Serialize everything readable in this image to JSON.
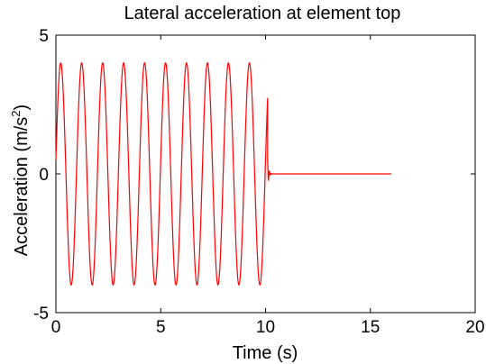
{
  "chart_data": {
    "type": "line",
    "title": "Lateral acceleration at element top",
    "xlabel": "Time (s)",
    "ylabel_main": "Acceleration (m/s",
    "ylabel_sup": "2",
    "ylabel_close": ")",
    "xlim": [
      0,
      20
    ],
    "ylim": [
      -5,
      5
    ],
    "x_ticks": [
      0,
      5,
      10,
      15,
      20
    ],
    "y_ticks": [
      -5,
      0,
      5
    ],
    "grid": false,
    "legend": "none",
    "series": [
      {
        "color": "#ff0000",
        "segments": [
          {
            "kind": "sinusoid",
            "x_start": 0,
            "x_end": 10.1,
            "amplitude": 4.0,
            "frequency_hz": 1.0,
            "start_value": 0.5
          },
          {
            "kind": "decaying_transient",
            "x_start": 10.1,
            "x_end": 10.35,
            "peak": 0.5
          },
          {
            "kind": "constant",
            "x_start": 10.35,
            "x_end": 16.0,
            "value": 0
          }
        ]
      }
    ]
  }
}
